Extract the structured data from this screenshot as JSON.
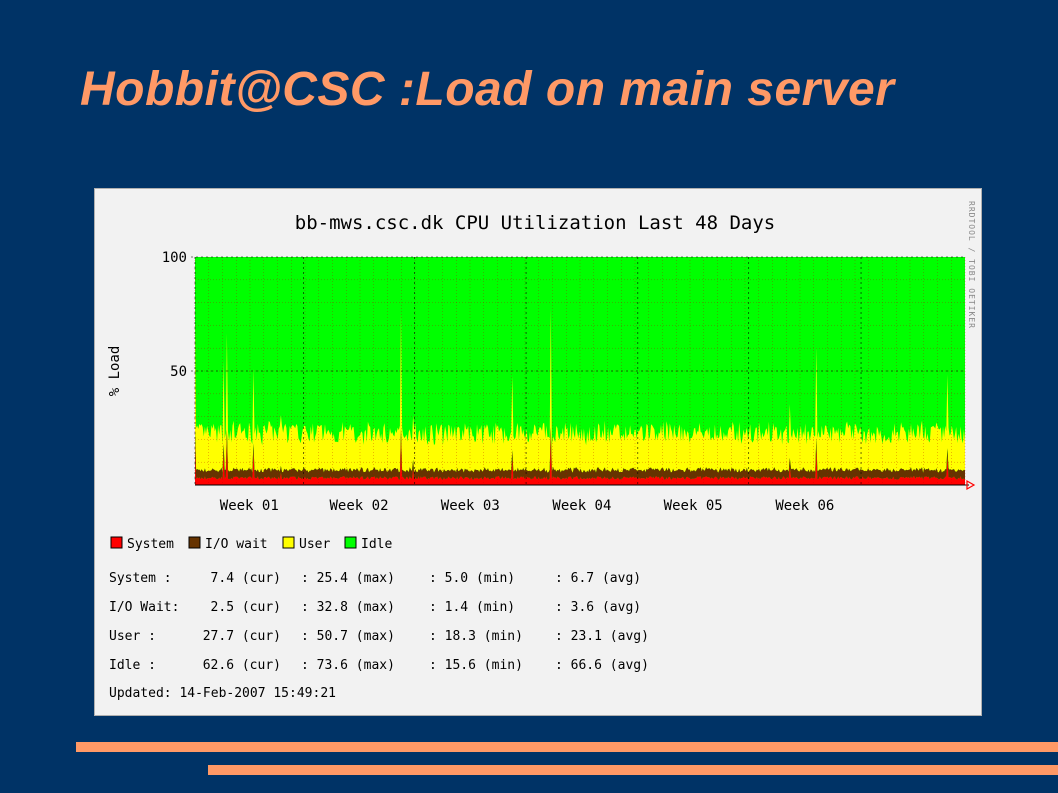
{
  "slide": {
    "title": "Hobbit@CSC :Load on main server",
    "accent_color": "#ff9966",
    "background_color": "#003366"
  },
  "chart_data": {
    "type": "area",
    "title": "bb-mws.csc.dk CPU Utilization Last 48 Days",
    "ylabel": "% Load",
    "xlabel": "",
    "ylim": [
      0,
      100
    ],
    "yticks": [
      100,
      50
    ],
    "stacked": true,
    "grid": true,
    "xticks": [
      "Week 01",
      "Week 02",
      "Week 03",
      "Week 04",
      "Week 05",
      "Week 06"
    ],
    "watermark": "RRDTOOL / TOBI OETIKER",
    "legend_position": "bottom",
    "series": [
      {
        "name": "System",
        "color": "#ff0000",
        "cur": 7.4,
        "max": 25.4,
        "min": 5.0,
        "avg": 6.7
      },
      {
        "name": "I/O wait",
        "color": "#663300",
        "cur": 2.5,
        "max": 32.8,
        "min": 1.4,
        "avg": 3.6
      },
      {
        "name": "User",
        "color": "#ffff00",
        "cur": 27.7,
        "max": 50.7,
        "min": 18.3,
        "avg": 23.1
      },
      {
        "name": "Idle",
        "color": "#00ff00",
        "cur": 62.6,
        "max": 73.6,
        "min": 15.6,
        "avg": 66.6
      }
    ],
    "stats": [
      {
        "label": "System  :",
        "cur": "7.4 (cur)",
        "max": ": 25.4 (max)",
        "min": ":  5.0 (min)",
        "avg": ":  6.7 (avg)"
      },
      {
        "label": "I/O Wait:",
        "cur": "2.5 (cur)",
        "max": ": 32.8 (max)",
        "min": ":  1.4 (min)",
        "avg": ":  3.6 (avg)"
      },
      {
        "label": "User    :",
        "cur": "27.7 (cur)",
        "max": ": 50.7 (max)",
        "min": ": 18.3 (min)",
        "avg": ": 23.1 (avg)"
      },
      {
        "label": "Idle    :",
        "cur": "62.6 (cur)",
        "max": ": 73.6 (max)",
        "min": ": 15.6 (min)",
        "avg": ": 66.6 (avg)"
      }
    ],
    "updated": "Updated: 14-Feb-2007 15:49:21"
  }
}
